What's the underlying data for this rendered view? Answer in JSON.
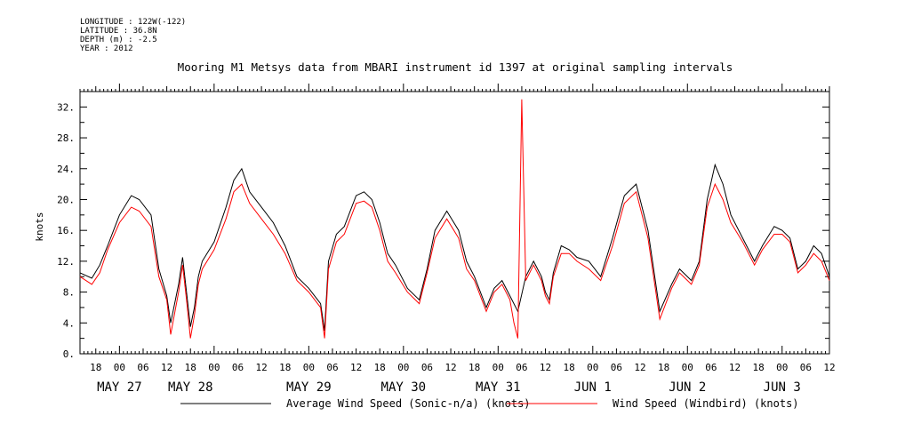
{
  "header": {
    "meta_lines": [
      "LONGITUDE : 122W(-122)",
      "LATITUDE : 36.8N",
      "DEPTH (m) : -2.5",
      "YEAR : 2012"
    ]
  },
  "chart_data": {
    "type": "line",
    "title": "Mooring M1 Metsys data from MBARI instrument id 1397 at original sampling intervals",
    "ylabel": "knots",
    "xlabel": "",
    "ylim": [
      0,
      34
    ],
    "xlim_hours": [
      -10,
      180
    ],
    "y_ticks": [
      0,
      4,
      8,
      12,
      16,
      20,
      24,
      28,
      32
    ],
    "y_tick_labels": [
      "0.",
      "4.",
      "8.",
      "12.",
      "16.",
      "20.",
      "24.",
      "28.",
      "32."
    ],
    "x_hour_labels": [
      "18",
      "00",
      "06",
      "12",
      "18",
      "00",
      "06",
      "12",
      "18",
      "00",
      "06",
      "12",
      "18",
      "00",
      "06",
      "12",
      "18",
      "00",
      "06",
      "12",
      "18",
      "00",
      "06",
      "12",
      "18",
      "00",
      "06",
      "12",
      "18",
      "00",
      "06",
      "12"
    ],
    "x_day_labels": [
      "MAY 27",
      "MAY 28",
      "MAY 29",
      "MAY 30",
      "MAY 31",
      "JUN  1",
      "JUN  2",
      "JUN  3"
    ],
    "x_day_hours": [
      0,
      18,
      48,
      72,
      96,
      120,
      144,
      168
    ],
    "grid": false,
    "legend_position": "bottom",
    "series": [
      {
        "name": "Average Wind Speed (Sonic-n/a) (knots)",
        "color": "#000000",
        "x": [
          -10,
          -7,
          -5,
          -3,
          0,
          3,
          5,
          8,
          10,
          12,
          13,
          15,
          16,
          17,
          18,
          19,
          20,
          21,
          24,
          27,
          29,
          31,
          33,
          36,
          39,
          42,
          45,
          48,
          51,
          52,
          53,
          55,
          57,
          60,
          62,
          64,
          66,
          67,
          68,
          70,
          73,
          76,
          78,
          80,
          83,
          86,
          88,
          90,
          93,
          95,
          97,
          99,
          101,
          103,
          105,
          107,
          108,
          109,
          110,
          112,
          114,
          116,
          119,
          122,
          125,
          128,
          131,
          134,
          137,
          140,
          142,
          145,
          147,
          149,
          151,
          153,
          155,
          158,
          161,
          163,
          166,
          168,
          170,
          172,
          174,
          176,
          178,
          180
        ],
        "y": [
          10.5,
          9.8,
          11.5,
          14.0,
          18.0,
          20.5,
          20.0,
          18.0,
          11.0,
          7.5,
          4.0,
          9.0,
          12.5,
          8.0,
          3.5,
          6.0,
          10.0,
          12.0,
          14.5,
          19.0,
          22.5,
          24.0,
          21.0,
          19.0,
          17.0,
          14.0,
          10.0,
          8.5,
          6.5,
          3.0,
          12.0,
          15.5,
          16.5,
          20.5,
          21.0,
          20.0,
          17.0,
          15.0,
          13.0,
          11.5,
          8.5,
          7.0,
          11.0,
          16.0,
          18.5,
          16.0,
          12.0,
          10.0,
          6.0,
          8.5,
          9.5,
          7.5,
          5.5,
          10.0,
          12.0,
          10.0,
          8.0,
          7.0,
          10.5,
          14.0,
          13.5,
          12.5,
          12.0,
          10.0,
          15.0,
          20.5,
          22.0,
          16.0,
          5.5,
          9.0,
          11.0,
          9.5,
          12.0,
          20.0,
          24.5,
          22.0,
          18.0,
          15.0,
          12.0,
          14.0,
          16.5,
          16.0,
          15.0,
          11.0,
          12.0,
          14.0,
          13.0,
          10.0
        ]
      },
      {
        "name": "Wind Speed (Windbird) (knots)",
        "color": "#ff0000",
        "x": [
          -10,
          -7,
          -5,
          -3,
          0,
          3,
          5,
          8,
          10,
          12,
          13,
          15,
          16,
          17,
          18,
          19,
          20,
          21,
          24,
          27,
          29,
          31,
          33,
          36,
          39,
          42,
          45,
          48,
          51,
          52,
          53,
          55,
          57,
          60,
          62,
          64,
          66,
          67,
          68,
          70,
          73,
          76,
          78,
          80,
          83,
          86,
          88,
          90,
          93,
          95,
          97,
          99,
          100,
          101,
          102,
          103,
          105,
          107,
          108,
          109,
          110,
          112,
          114,
          116,
          119,
          122,
          125,
          128,
          131,
          134,
          137,
          140,
          142,
          145,
          147,
          149,
          151,
          153,
          155,
          158,
          161,
          163,
          166,
          168,
          170,
          172,
          174,
          176,
          178,
          180
        ],
        "y": [
          10.0,
          9.0,
          10.5,
          13.5,
          17.0,
          19.0,
          18.5,
          16.5,
          10.0,
          7.0,
          2.5,
          8.0,
          11.5,
          7.0,
          2.0,
          5.0,
          9.0,
          11.0,
          13.5,
          17.5,
          21.0,
          22.0,
          19.5,
          17.5,
          15.5,
          13.0,
          9.5,
          8.0,
          6.0,
          2.0,
          11.0,
          14.5,
          15.5,
          19.5,
          19.8,
          19.0,
          16.0,
          14.0,
          12.0,
          10.5,
          8.0,
          6.5,
          10.5,
          15.0,
          17.5,
          15.0,
          11.0,
          9.5,
          5.5,
          8.0,
          9.0,
          7.0,
          4.0,
          2.0,
          33.0,
          9.5,
          11.5,
          9.5,
          7.5,
          6.5,
          10.0,
          13.0,
          13.0,
          12.0,
          11.0,
          9.5,
          14.0,
          19.5,
          21.0,
          15.0,
          4.5,
          8.5,
          10.5,
          9.0,
          11.5,
          19.0,
          22.0,
          20.0,
          17.0,
          14.5,
          11.5,
          13.5,
          15.5,
          15.5,
          14.5,
          10.5,
          11.5,
          13.0,
          12.0,
          9.5
        ]
      }
    ]
  }
}
